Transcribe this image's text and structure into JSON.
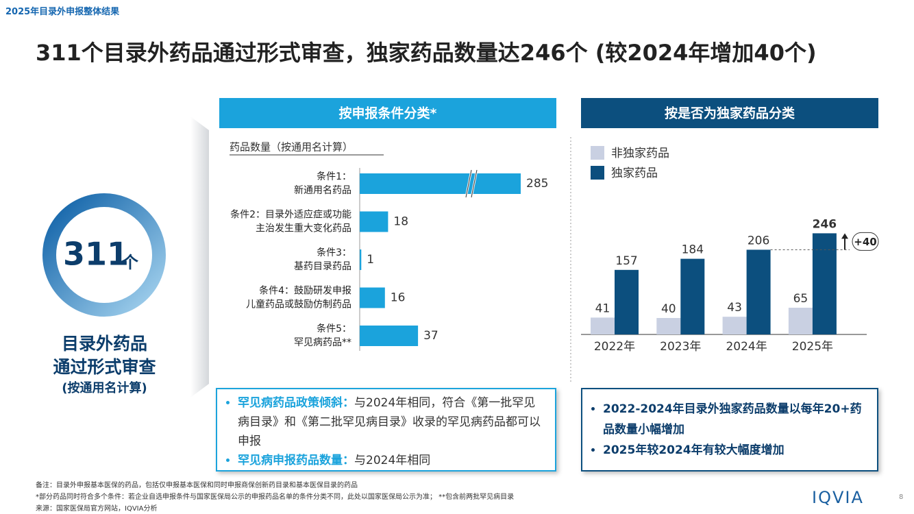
{
  "header": {
    "section": "2025年目录外申报整体结果",
    "title": "311个目录外药品通过形式审查，独家药品数量达246个 (较2024年增加40个)"
  },
  "summary": {
    "number": "311",
    "unit": "个",
    "lines": [
      "目录外药品",
      "通过形式审查",
      "(按通用名计算)"
    ]
  },
  "chart_data": [
    {
      "type": "bar",
      "orientation": "horizontal",
      "title": "按申报条件分类*",
      "x_label": "药品数量（按通用名计算）",
      "categories": [
        [
          "条件1：",
          "新通用名药品"
        ],
        [
          "条件2：目录外适应症或功能",
          "主治发生重大变化药品"
        ],
        [
          "条件3：",
          "基药目录药品"
        ],
        [
          "条件4：鼓励研发申报",
          "儿童药品或鼓励仿制药品"
        ],
        [
          "条件5：",
          "罕见病药品**"
        ]
      ],
      "values": [
        285,
        18,
        1,
        16,
        37
      ],
      "color": "#1ba3dc",
      "xlim": [
        0,
        100
      ],
      "axis_break": true
    },
    {
      "type": "bar",
      "orientation": "vertical",
      "title": "按是否为独家药品分类",
      "categories": [
        "2022年",
        "2023年",
        "2024年",
        "2025年"
      ],
      "series": [
        {
          "name": "非独家药品",
          "color": "#c9d0e2",
          "values": [
            41,
            40,
            43,
            65
          ]
        },
        {
          "name": "独家药品",
          "color": "#0c4f7e",
          "values": [
            157,
            184,
            206,
            246
          ]
        }
      ],
      "ylim": [
        0,
        300
      ],
      "annotation": "+40"
    }
  ],
  "notes_left": [
    {
      "label": "罕见病药品政策倾斜：",
      "text": "与2024年相同，符合《第一批罕见病目录》和《第二批罕见病目录》收录的罕见病药品都可以申报"
    },
    {
      "label": "罕见病申报药品数量：",
      "text": "与2024年相同"
    }
  ],
  "notes_right": [
    "2022-2024年目录外独家药品数量以每年20+药品数量小幅增加",
    "2025年较2024年有较大幅度增加"
  ],
  "footer": {
    "lines": [
      "备注：目录外申报基本医保的药品，包括仅申报基本医保和同时申报商保创新药目录和基本医保目录的药品",
      "*部分药品同时符合多个条件：若企业自选申报条件与国家医保局公示的申报药品名单的条件分类不同，此处以国家医保局公示为准； **包含前两批罕见病目录",
      "来源：国家医保局官方网站，IQVIA分析"
    ],
    "logo": "IQVIA",
    "page": "8"
  }
}
